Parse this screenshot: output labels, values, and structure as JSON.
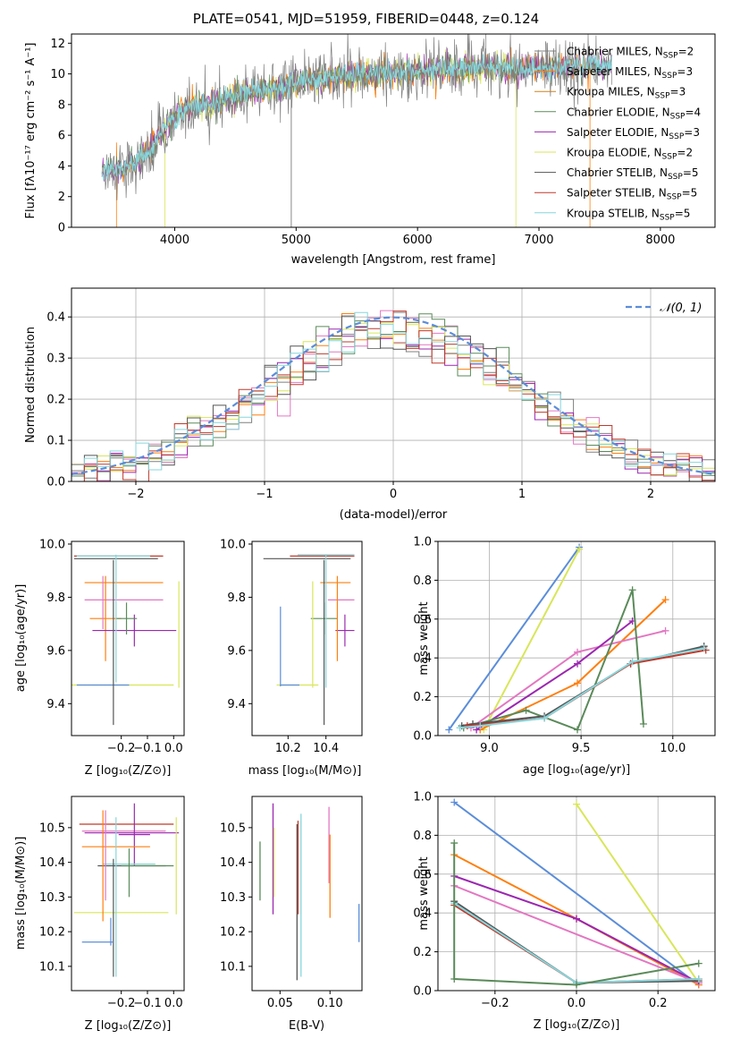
{
  "figure_title": "PLATE=0541, MJD=51959, FIBERID=0448, z=0.124",
  "colors": {
    "ch_miles": "#ff7f0e",
    "salp_miles": "#7f7f7f",
    "kr_miles": "#d4801a",
    "ch_elodie": "#5a8a5a",
    "salp_elodie": "#9b27b0",
    "kr_elodie": "#d8e65a",
    "ch_stelib": "#555555",
    "salp_stelib": "#c0392b",
    "kr_stelib": "#86d6dc",
    "gauss": "#5b8dd9",
    "pink": "#e377c2",
    "blue": "#5b8dd9"
  },
  "chart_data": [
    {
      "type": "line",
      "id": "spectrum",
      "xlabel": "wavelength [Angstrom, rest frame]",
      "ylabel": "Flux [f",
      "ylabel_full": "Flux [fλ10⁻¹⁷ erg cm⁻² s⁻¹ A⁻¹]",
      "xlim": [
        3150,
        8450
      ],
      "ylim": [
        0,
        12.6
      ],
      "xticks": [
        4000,
        5000,
        6000,
        7000,
        8000
      ],
      "yticks": [
        0,
        2,
        4,
        6,
        8,
        10,
        12
      ],
      "legend": [
        "Chabrier MILES, N_SSP=2",
        "Salpeter MILES, N_SSP=3",
        "Kroupa MILES, N_SSP=3",
        "Chabrier ELODIE, N_SSP=4",
        "Salpeter ELODIE, N_SSP=3",
        "Kroupa ELODIE, N_SSP=2",
        "Chabrier STELIB, N_SSP=5",
        "Salpeter STELIB, N_SSP=5",
        "Kroupa STELIB, N_SSP=5"
      ],
      "continuum": [
        [
          3400,
          3.6
        ],
        [
          3600,
          3.9
        ],
        [
          3800,
          5.0
        ],
        [
          3950,
          6.8
        ],
        [
          4100,
          7.8
        ],
        [
          4300,
          8.0
        ],
        [
          4500,
          8.6
        ],
        [
          4800,
          9.0
        ],
        [
          5000,
          9.5
        ],
        [
          5300,
          9.8
        ],
        [
          5600,
          10.0
        ],
        [
          5900,
          10.1
        ],
        [
          6200,
          10.3
        ],
        [
          6500,
          10.4
        ],
        [
          6800,
          10.3
        ],
        [
          7100,
          10.4
        ],
        [
          7400,
          10.6
        ],
        [
          7600,
          10.5
        ]
      ],
      "dropouts": [
        [
          3520,
          0
        ],
        [
          3920,
          0
        ],
        [
          4960,
          0
        ],
        [
          6810,
          0
        ],
        [
          7420,
          0
        ]
      ]
    },
    {
      "type": "histogram",
      "id": "residuals",
      "xlabel": "(data-model)/error",
      "ylabel": "Normed distribution",
      "xlim": [
        -2.5,
        2.5
      ],
      "ylim": [
        0,
        0.47
      ],
      "xticks": [
        -2,
        -1,
        0,
        1,
        2
      ],
      "yticks": [
        0.0,
        0.1,
        0.2,
        0.3,
        0.4
      ],
      "gauss_label": "𝒩(0, 1)",
      "bin_width": 0.1
    },
    {
      "type": "scatter",
      "id": "age_Z",
      "xlabel": "Z [log₁₀(Z/Z⊙)]",
      "ylabel": "age  [log₁₀(age/yr)]",
      "xlim": [
        -0.39,
        0.04
      ],
      "ylim": [
        9.28,
        10.01
      ],
      "xticks": [
        -0.2,
        -0.1,
        0.0
      ],
      "yticks": [
        9.4,
        9.6,
        9.8,
        10.0
      ]
    },
    {
      "type": "scatter",
      "id": "age_mass",
      "xlabel": "mass [log₁₀(M/M⊙)]",
      "xlim": [
        10.01,
        10.59
      ],
      "ylim": [
        9.28,
        10.01
      ],
      "xticks": [
        10.2,
        10.4
      ],
      "yticks": [
        9.4,
        9.6,
        9.8,
        10.0
      ]
    },
    {
      "type": "line",
      "id": "weight_age",
      "xlabel": "age  [log₁₀(age/yr)]",
      "ylabel": "mass weight",
      "xlim": [
        8.72,
        10.23
      ],
      "ylim": [
        0,
        1
      ],
      "xticks": [
        9.0,
        9.5,
        10.0
      ],
      "yticks": [
        0.0,
        0.2,
        0.4,
        0.6,
        0.8,
        1.0
      ],
      "series": [
        {
          "color": "blue",
          "points": [
            [
              8.78,
              0.03
            ],
            [
              9.49,
              0.97
            ]
          ]
        },
        {
          "color": "kr_elodie",
          "points": [
            [
              8.97,
              0.03
            ],
            [
              9.49,
              0.96
            ]
          ]
        },
        {
          "color": "ch_miles",
          "points": [
            [
              8.95,
              0.03
            ],
            [
              9.48,
              0.27
            ],
            [
              9.96,
              0.7
            ]
          ]
        },
        {
          "color": "pink",
          "points": [
            [
              8.9,
              0.04
            ],
            [
              9.48,
              0.43
            ],
            [
              9.96,
              0.54
            ]
          ]
        },
        {
          "color": "salp_elodie",
          "points": [
            [
              8.93,
              0.03
            ],
            [
              9.48,
              0.37
            ],
            [
              9.78,
              0.59
            ]
          ]
        },
        {
          "color": "ch_elodie",
          "points": [
            [
              8.86,
              0.04
            ],
            [
              9.2,
              0.13
            ],
            [
              9.48,
              0.03
            ],
            [
              9.78,
              0.75
            ],
            [
              9.84,
              0.06
            ]
          ]
        },
        {
          "color": "ch_stelib",
          "points": [
            [
              8.85,
              0.05
            ],
            [
              8.91,
              0.06
            ],
            [
              9.3,
              0.1
            ],
            [
              9.77,
              0.37
            ],
            [
              10.17,
              0.46
            ]
          ]
        },
        {
          "color": "salp_stelib",
          "points": [
            [
              8.88,
              0.05
            ],
            [
              9.3,
              0.09
            ],
            [
              9.77,
              0.37
            ],
            [
              10.18,
              0.44
            ]
          ]
        },
        {
          "color": "kr_stelib",
          "points": [
            [
              8.84,
              0.04
            ],
            [
              8.95,
              0.05
            ],
            [
              9.3,
              0.09
            ],
            [
              9.78,
              0.38
            ],
            [
              10.17,
              0.45
            ]
          ]
        }
      ]
    },
    {
      "type": "scatter",
      "id": "mass_Z",
      "xlabel": "Z [log₁₀(Z/Z⊙)]",
      "ylabel": "mass [log₁₀(M/M⊙)]",
      "xlim": [
        -0.39,
        0.04
      ],
      "ylim": [
        10.03,
        10.59
      ],
      "xticks": [
        -0.2,
        -0.1,
        0.0
      ],
      "yticks": [
        10.1,
        10.2,
        10.3,
        10.4,
        10.5
      ]
    },
    {
      "type": "scatter",
      "id": "mass_ebv",
      "xlabel": "E(B-V)",
      "xlim": [
        0.022,
        0.132
      ],
      "ylim": [
        10.03,
        10.59
      ],
      "xticks": [
        0.05,
        0.1
      ],
      "yticks": [
        10.1,
        10.2,
        10.3,
        10.4,
        10.5
      ]
    },
    {
      "type": "line",
      "id": "weight_Z",
      "xlabel": "Z [log₁₀(Z/Z⊙)]",
      "ylabel": "mass weight",
      "xlim": [
        -0.34,
        0.34
      ],
      "ylim": [
        0,
        1
      ],
      "xticks": [
        -0.2,
        0.0,
        0.2
      ],
      "yticks": [
        0.0,
        0.2,
        0.4,
        0.6,
        0.8,
        1.0
      ],
      "series": [
        {
          "color": "blue",
          "points": [
            [
              -0.3,
              0.97
            ],
            [
              0.3,
              0.03
            ]
          ]
        },
        {
          "color": "kr_elodie",
          "points": [
            [
              0.0,
              0.96
            ],
            [
              0.3,
              0.04
            ]
          ]
        },
        {
          "color": "ch_miles",
          "points": [
            [
              -0.3,
              0.7
            ],
            [
              0.0,
              0.37
            ],
            [
              0.3,
              0.03
            ]
          ]
        },
        {
          "color": "salp_elodie",
          "points": [
            [
              -0.3,
              0.59
            ],
            [
              0.0,
              0.37
            ],
            [
              0.3,
              0.04
            ]
          ]
        },
        {
          "color": "pink",
          "points": [
            [
              -0.3,
              0.54
            ],
            [
              0.3,
              0.04
            ]
          ]
        },
        {
          "color": "ch_stelib",
          "points": [
            [
              -0.3,
              0.46
            ],
            [
              0.0,
              0.04
            ],
            [
              0.3,
              0.05
            ]
          ]
        },
        {
          "color": "salp_stelib",
          "points": [
            [
              -0.3,
              0.44
            ],
            [
              0.0,
              0.04
            ],
            [
              0.3,
              0.06
            ]
          ]
        },
        {
          "color": "kr_stelib",
          "points": [
            [
              -0.3,
              0.45
            ],
            [
              0.0,
              0.04
            ],
            [
              0.3,
              0.06
            ]
          ]
        },
        {
          "color": "ch_elodie",
          "points": [
            [
              -0.3,
              0.76
            ],
            [
              -0.3,
              0.06
            ],
            [
              0.0,
              0.03
            ],
            [
              0.3,
              0.14
            ]
          ]
        }
      ]
    }
  ]
}
